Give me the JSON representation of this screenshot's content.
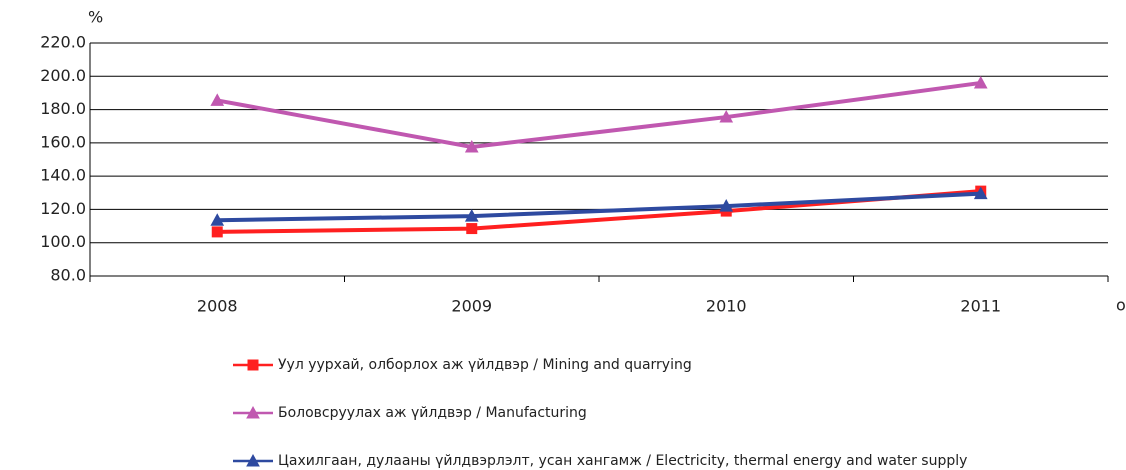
{
  "chart_data": {
    "type": "line",
    "y_label": "%",
    "x_label": "он",
    "categories": [
      "2008",
      "2009",
      "2010",
      "2011"
    ],
    "series": [
      {
        "name": "Уул уурхай, олборлох аж үйлдвэр / Mining and quarrying",
        "color": "#ff2020",
        "marker": "square",
        "values": [
          106.5,
          108.5,
          119,
          131
        ]
      },
      {
        "name": "Боловсруулах аж үйлдвэр / Manufacturing",
        "color": "#c058b0",
        "marker": "triangle",
        "values": [
          185.5,
          157.5,
          175.5,
          196
        ]
      },
      {
        "name": "Цахилгаан, дулааны үйлдвэрлэлт, усан хангамж / Electricity, thermal energy and water supply",
        "color": "#2e4aa0",
        "marker": "triangle",
        "values": [
          113.5,
          116,
          122,
          129.5
        ]
      }
    ],
    "ylim": [
      80,
      220
    ],
    "yticks": [
      {
        "value": 80,
        "label": "80.0"
      },
      {
        "value": 100,
        "label": "100.0"
      },
      {
        "value": 120,
        "label": "120.0"
      },
      {
        "value": 140,
        "label": "140.0"
      },
      {
        "value": 160,
        "label": "160.0"
      },
      {
        "value": 180,
        "label": "180.0"
      },
      {
        "value": 200,
        "label": "200.0"
      },
      {
        "value": 220,
        "label": "220.0"
      }
    ],
    "grid": true
  }
}
